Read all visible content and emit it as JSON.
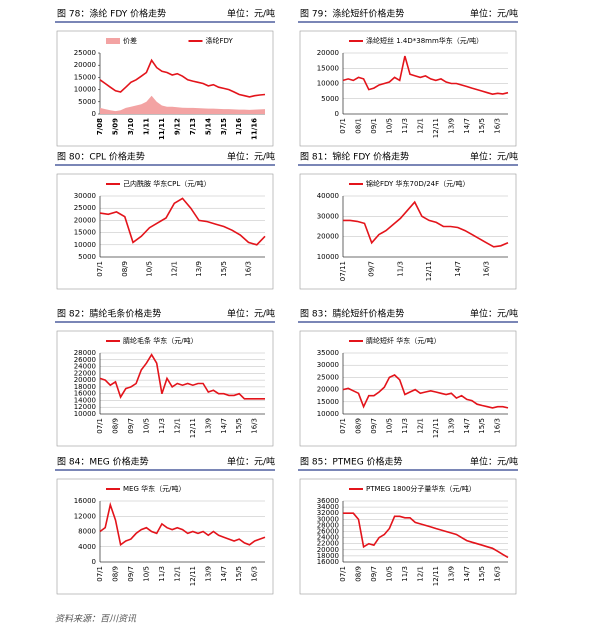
{
  "chart_data": [
    {
      "type": "line",
      "caption": "图 78：涤纶 FDY 价格走势",
      "unit": "单位：元/吨",
      "grid": false,
      "label_weight": "bold",
      "categories": [
        "7/08",
        null,
        null,
        "5/09",
        null,
        null,
        "3/10",
        null,
        null,
        "1/11",
        null,
        null,
        "11/11",
        null,
        null,
        "9/12",
        null,
        null,
        "7/13",
        null,
        null,
        "5/14",
        null,
        null,
        "3/15",
        null,
        null,
        "1/16",
        null,
        null,
        "11/16",
        null,
        null
      ],
      "ylim": [
        0,
        25000
      ],
      "yticks": [
        0,
        5000,
        10000,
        15000,
        20000,
        25000
      ],
      "series": [
        {
          "name": "价差",
          "color": "#f3a3a3",
          "style": "area",
          "values": [
            2500,
            2000,
            1500,
            1200,
            1500,
            2500,
            3000,
            3500,
            4000,
            5000,
            7500,
            5000,
            3500,
            3000,
            3000,
            2800,
            2600,
            2500,
            2500,
            2400,
            2300,
            2200,
            2200,
            2100,
            2000,
            2000,
            1900,
            1800,
            1800,
            1700,
            1800,
            1900,
            2000
          ]
        },
        {
          "name": "涤纶FDY",
          "color": "#e3141b",
          "style": "line",
          "values": [
            14000,
            12500,
            11000,
            9500,
            9000,
            11000,
            13000,
            14000,
            15500,
            17000,
            22000,
            19000,
            17500,
            17000,
            16000,
            16500,
            15500,
            14000,
            13500,
            13000,
            12500,
            11500,
            12000,
            11000,
            10500,
            10000,
            9000,
            8000,
            7500,
            7000,
            7500,
            7800,
            8000
          ]
        }
      ]
    },
    {
      "type": "line",
      "caption": "图 79：涤纶短纤价格走势",
      "unit": "单位：元/吨",
      "grid": true,
      "categories": [
        "07/1",
        null,
        null,
        "08/1",
        null,
        null,
        "09/1",
        null,
        null,
        "10/5",
        null,
        null,
        "11/3",
        null,
        null,
        "12/1",
        null,
        null,
        "12/11",
        null,
        null,
        "13/9",
        null,
        null,
        "14/7",
        null,
        null,
        "15/5",
        null,
        null,
        "16/3",
        null,
        null
      ],
      "ylim": [
        0,
        20000
      ],
      "yticks": [
        0,
        5000,
        10000,
        15000,
        20000
      ],
      "series": [
        {
          "name": "涤纶短丝 1.4D*38mm华东（元/吨）",
          "color": "#e3141b",
          "style": "line",
          "values": [
            11000,
            11500,
            11000,
            12000,
            11500,
            8000,
            8500,
            9500,
            10000,
            10500,
            12000,
            11000,
            19000,
            13000,
            12500,
            12000,
            12500,
            11500,
            11000,
            11500,
            10500,
            10000,
            10000,
            9500,
            9000,
            8500,
            8000,
            7500,
            7000,
            6500,
            6800,
            6600,
            7000
          ]
        }
      ]
    },
    {
      "type": "line",
      "caption": "图 80：CPL 价格走势",
      "unit": "单位：元/吨",
      "grid": true,
      "categories": [
        "07/1",
        null,
        null,
        "08/9",
        null,
        null,
        "10/5",
        null,
        null,
        "12/1",
        null,
        null,
        "13/9",
        null,
        null,
        "15/5",
        null,
        null,
        "16/3",
        null,
        null
      ],
      "ylim": [
        5000,
        30000
      ],
      "yticks": [
        5000,
        10000,
        15000,
        20000,
        25000,
        30000
      ],
      "series": [
        {
          "name": "己内酰胺 华东CPL（元/吨）",
          "color": "#e3141b",
          "style": "line",
          "values": [
            23000,
            22500,
            23500,
            21500,
            11000,
            13500,
            17000,
            19000,
            21000,
            27000,
            29000,
            25000,
            20000,
            19500,
            18500,
            17500,
            16000,
            14000,
            11000,
            10000,
            13500
          ]
        }
      ]
    },
    {
      "type": "line",
      "caption": "图 81：锦纶 FDY 价格走势",
      "unit": "单位：元/吨",
      "grid": true,
      "categories": [
        "07/11",
        null,
        null,
        null,
        "09/7",
        null,
        null,
        null,
        "11/3",
        null,
        null,
        null,
        "12/11",
        null,
        null,
        null,
        "14/7",
        null,
        null,
        null,
        "16/3",
        null,
        null,
        null
      ],
      "ylim": [
        10000,
        40000
      ],
      "yticks": [
        10000,
        20000,
        30000,
        40000
      ],
      "series": [
        {
          "name": "锦纶FDY 华东70D/24F（元/吨）",
          "color": "#e3141b",
          "style": "line",
          "values": [
            28000,
            28000,
            27500,
            26500,
            17000,
            21000,
            23000,
            26000,
            29000,
            33000,
            37000,
            30000,
            28000,
            27000,
            25000,
            25000,
            24500,
            23000,
            21000,
            19000,
            17000,
            15000,
            15500,
            17000
          ]
        }
      ]
    },
    {
      "type": "line",
      "caption": "图 82：腈纶毛条价格走势",
      "unit": "单位：元/吨",
      "grid": true,
      "categories": [
        "07/1",
        null,
        null,
        "08/9",
        null,
        null,
        "09/7",
        null,
        null,
        "10/5",
        null,
        null,
        "11/3",
        null,
        null,
        "12/1",
        null,
        null,
        "12/11",
        null,
        null,
        "13/9",
        null,
        null,
        "14/7",
        null,
        null,
        "15/5",
        null,
        null,
        "16/3",
        null,
        null
      ],
      "ylim": [
        10000,
        28000
      ],
      "yticks": [
        10000,
        12000,
        14000,
        16000,
        18000,
        20000,
        22000,
        24000,
        26000,
        28000
      ],
      "series": [
        {
          "name": "腈纶毛条 华东（元/吨）",
          "color": "#e3141b",
          "style": "line",
          "values": [
            20500,
            20000,
            18500,
            19500,
            15000,
            17500,
            18000,
            19000,
            23000,
            25000,
            27500,
            25000,
            16000,
            20500,
            18000,
            19000,
            18500,
            19000,
            18500,
            19000,
            19000,
            16500,
            17000,
            16000,
            16000,
            15500,
            15500,
            16000,
            14500,
            14500,
            14500,
            14500,
            14500
          ]
        }
      ]
    },
    {
      "type": "line",
      "caption": "图 83：腈纶短纤价格走势",
      "unit": "单位：元/吨",
      "grid": true,
      "categories": [
        "07/1",
        null,
        null,
        "08/9",
        null,
        null,
        "09/7",
        null,
        null,
        "10/5",
        null,
        null,
        "11/3",
        null,
        null,
        "12/1",
        null,
        null,
        "12/11",
        null,
        null,
        "13/9",
        null,
        null,
        "14/7",
        null,
        null,
        "15/5",
        null,
        null,
        "16/3",
        null,
        null
      ],
      "ylim": [
        10000,
        35000
      ],
      "yticks": [
        10000,
        15000,
        20000,
        25000,
        30000,
        35000
      ],
      "series": [
        {
          "name": "腈纶短纤 华东（元/吨）",
          "color": "#e3141b",
          "style": "line",
          "values": [
            20000,
            20500,
            19500,
            18500,
            13000,
            17500,
            17500,
            19000,
            21000,
            25000,
            26000,
            24000,
            18000,
            19000,
            20000,
            18500,
            19000,
            19500,
            19000,
            18500,
            18000,
            18500,
            16500,
            17500,
            16000,
            15500,
            14000,
            13500,
            13000,
            12500,
            13000,
            13000,
            12500
          ]
        }
      ]
    },
    {
      "type": "line",
      "caption": "图 84：MEG 价格走势",
      "unit": "单位：元/吨",
      "grid": true,
      "categories": [
        "07/1",
        null,
        null,
        "08/9",
        null,
        null,
        "09/7",
        null,
        null,
        "10/5",
        null,
        null,
        "11/3",
        null,
        null,
        "12/1",
        null,
        null,
        "12/11",
        null,
        null,
        "13/9",
        null,
        null,
        "14/7",
        null,
        null,
        "15/5",
        null,
        null,
        "16/3",
        null,
        null
      ],
      "ylim": [
        0,
        16000
      ],
      "yticks": [
        0,
        4000,
        8000,
        12000,
        16000
      ],
      "series": [
        {
          "name": "MEG 华东（元/吨）",
          "color": "#e3141b",
          "style": "line",
          "values": [
            8000,
            9000,
            15000,
            11000,
            4500,
            5500,
            6000,
            7500,
            8500,
            9000,
            8000,
            7500,
            10000,
            9000,
            8500,
            9000,
            8500,
            7500,
            8000,
            7500,
            8000,
            7000,
            8000,
            7000,
            6500,
            6000,
            5500,
            6000,
            5000,
            4500,
            5500,
            6000,
            6500
          ]
        }
      ]
    },
    {
      "type": "line",
      "caption": "图 85：PTMEG 价格走势",
      "unit": "单位：元/吨",
      "grid": true,
      "categories": [
        "07/1",
        null,
        null,
        "08/9",
        null,
        null,
        "09/7",
        null,
        null,
        "10/5",
        null,
        null,
        "11/3",
        null,
        null,
        "12/1",
        null,
        null,
        "12/11",
        null,
        null,
        "13/9",
        null,
        null,
        "14/7",
        null,
        null,
        "15/5",
        null,
        null,
        "16/3",
        null,
        null
      ],
      "ylim": [
        16000,
        36000
      ],
      "yticks": [
        16000,
        18000,
        20000,
        22000,
        24000,
        26000,
        28000,
        30000,
        32000,
        34000,
        36000
      ],
      "series": [
        {
          "name": "PTMEG 1800分子量华东（元/吨）",
          "color": "#e3141b",
          "style": "line",
          "values": [
            32000,
            32000,
            32000,
            30000,
            21000,
            22000,
            21500,
            24000,
            25000,
            27000,
            31000,
            31000,
            30500,
            30500,
            29000,
            28500,
            28000,
            27500,
            27000,
            26500,
            26000,
            25500,
            25000,
            24000,
            23000,
            22500,
            22000,
            21500,
            21000,
            20500,
            19500,
            18500,
            17500
          ]
        }
      ]
    }
  ],
  "footer": "资料来源：百川资讯"
}
